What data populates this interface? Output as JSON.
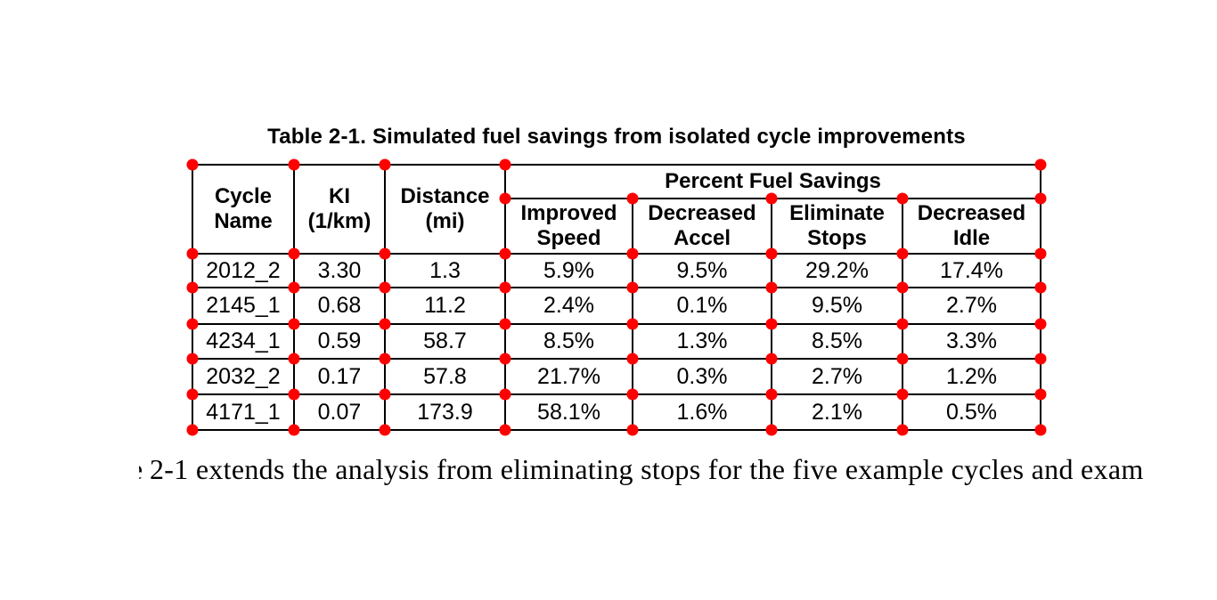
{
  "page": {
    "caption": "Table 2-1. Simulated fuel savings from isolated cycle improvements",
    "body_fragment": "e",
    "body_text": "2-1 extends the analysis from eliminating stops for the five example cycles and exam"
  },
  "table": {
    "columns": [
      {
        "line1": "Cycle",
        "line2": "Name"
      },
      {
        "line1": "KI",
        "line2": "(1/km)"
      },
      {
        "line1": "Distance",
        "line2": "(mi)"
      }
    ],
    "span_header": "Percent Fuel Savings",
    "sub_columns": [
      {
        "line1": "Improved",
        "line2": "Speed"
      },
      {
        "line1": "Decreased",
        "line2": "Accel"
      },
      {
        "line1": "Eliminate",
        "line2": "Stops"
      },
      {
        "line1": "Decreased",
        "line2": "Idle"
      }
    ],
    "rows": [
      [
        "2012_2",
        "3.30",
        "1.3",
        "5.9%",
        "9.5%",
        "29.2%",
        "17.4%"
      ],
      [
        "2145_1",
        "0.68",
        "11.2",
        "2.4%",
        "0.1%",
        "9.5%",
        "2.7%"
      ],
      [
        "4234_1",
        "0.59",
        "58.7",
        "8.5%",
        "1.3%",
        "8.5%",
        "3.3%"
      ],
      [
        "2032_2",
        "0.17",
        "57.8",
        "21.7%",
        "0.3%",
        "2.7%",
        "1.2%"
      ],
      [
        "4171_1",
        "0.07",
        "173.9",
        "58.1%",
        "1.6%",
        "2.1%",
        "0.5%"
      ]
    ]
  },
  "colors": {
    "marker": "#ff0000",
    "grid": "#000000",
    "text": "#000000",
    "background": "#ffffff"
  }
}
